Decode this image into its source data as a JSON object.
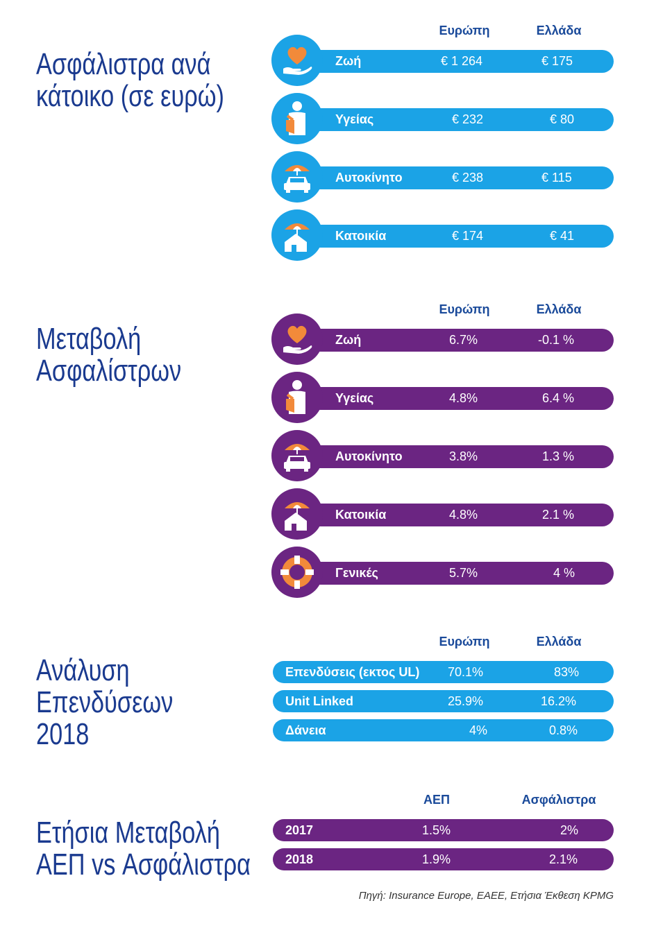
{
  "colors": {
    "title": "#1a3a8f",
    "blue": "#1ba3e6",
    "purple": "#6b2582",
    "accent": "#f28a3a"
  },
  "s1": {
    "title_l1": "Ασφάλιστρα ανά",
    "title_l2": "κάτοικο (σε ευρώ)",
    "h1": "Ευρώπη",
    "h2": "Ελλάδα",
    "rows": [
      {
        "icon": "heart-hand-icon",
        "label": "Ζωή",
        "eu": "€ 1 264",
        "gr": "€ 175"
      },
      {
        "icon": "injured-person-icon",
        "label": "Υγείας",
        "eu": "€ 232",
        "gr": "€ 80"
      },
      {
        "icon": "car-umbrella-icon",
        "label": "Αυτοκίνητο",
        "eu": "€ 238",
        "gr": "€ 115"
      },
      {
        "icon": "house-umbrella-icon",
        "label": "Κατοικία",
        "eu": "€ 174",
        "gr": "€ 41"
      }
    ]
  },
  "s2": {
    "title_l1": "Μεταβολή",
    "title_l2": "Ασφαλίστρων",
    "h1": "Ευρώπη",
    "h2": "Ελλάδα",
    "rows": [
      {
        "icon": "heart-hand-icon",
        "label": "Ζωή",
        "eu": "6.7%",
        "gr": "-0.1 %"
      },
      {
        "icon": "injured-person-icon",
        "label": "Υγείας",
        "eu": "4.8%",
        "gr": "6.4 %"
      },
      {
        "icon": "car-umbrella-icon",
        "label": "Αυτοκίνητο",
        "eu": "3.8%",
        "gr": "1.3 %"
      },
      {
        "icon": "house-umbrella-icon",
        "label": "Κατοικία",
        "eu": "4.8%",
        "gr": "2.1 %"
      },
      {
        "icon": "lifebuoy-icon",
        "label": "Γενικές",
        "eu": "5.7%",
        "gr": "4 %"
      }
    ]
  },
  "s3": {
    "title_l1": "Ανάλυση",
    "title_l2": "Επενδύσεων",
    "title_l3": "2018",
    "h1": "Ευρώπη",
    "h2": "Ελλάδα",
    "rows": [
      {
        "label": "Επενδύσεις (εκτος UL)",
        "eu": "70.1%",
        "gr": "83%"
      },
      {
        "label": "Unit Linked",
        "eu": "25.9%",
        "gr": "16.2%"
      },
      {
        "label": "Δάνεια",
        "eu": "4%",
        "gr": "0.8%"
      }
    ]
  },
  "s4": {
    "title_l1": "Ετήσια Μεταβολή",
    "title_l2": "ΑΕΠ vs Ασφάλιστρα",
    "h1": "ΑΕΠ",
    "h2": "Ασφάλιστρα",
    "rows": [
      {
        "label": "2017",
        "a": "1.5%",
        "b": "2%"
      },
      {
        "label": "2018",
        "a": "1.9%",
        "b": "2.1%"
      }
    ]
  },
  "source": "Πηγή: Insurance Europe, ΕΑΕΕ, Ετήσια Έκθεση KPMG"
}
